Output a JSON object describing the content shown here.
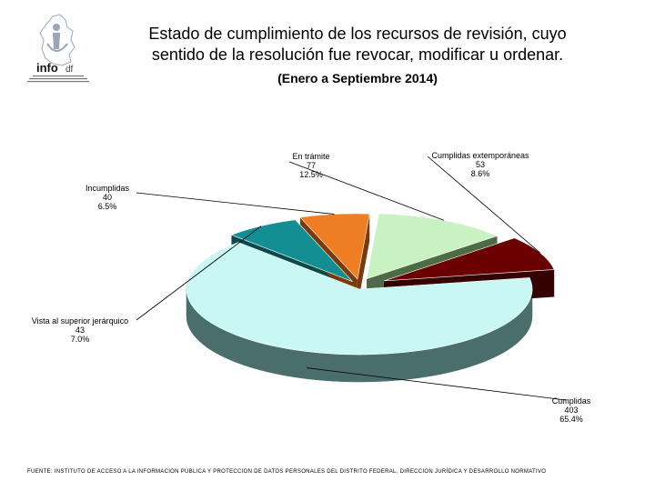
{
  "header": {
    "title_line1": "Estado de cumplimiento de los recursos de revisión, cuyo",
    "title_line2": "sentido de la resolución fue revocar, modificar u ordenar.",
    "subtitle": "(Enero a Septiembre 2014)"
  },
  "logo": {
    "text_main": "info",
    "text_suffix": "df"
  },
  "chart_data": {
    "type": "pie",
    "title": "Estado de cumplimiento de los recursos de revisión, cuyo sentido de la resolución fue revocar, modificar u ordenar.",
    "subtitle": "(Enero a Septiembre 2014)",
    "slices": [
      {
        "label": "Cumplidas",
        "value": 403,
        "percent": "65.4%",
        "color": "#c8f7f4",
        "side": "#4a6e6c"
      },
      {
        "label": "Vista al superior jerárquico",
        "value": 43,
        "percent": "7.0%",
        "color": "#138f94",
        "side": "#0a4a4d"
      },
      {
        "label": "Incumplidas",
        "value": 40,
        "percent": "6.5%",
        "color": "#ee7d24",
        "side": "#7a3a0c"
      },
      {
        "label": "En trámite",
        "value": 77,
        "percent": "12.5%",
        "color": "#c9f2c2",
        "side": "#4e6b48"
      },
      {
        "label": "Cumplidas extemporáneas",
        "value": 53,
        "percent": "8.6%",
        "color": "#6a0000",
        "side": "#350000"
      }
    ]
  },
  "footer": "FUENTE: INSTITUTO DE ACCESO A LA INFORMACION PUBLICA Y PROTECCION DE DATOS PERSONALES DEL DISTRITO FEDERAL, DIRECCION JURÍDICA Y DESARROLLO NORMATIVO"
}
